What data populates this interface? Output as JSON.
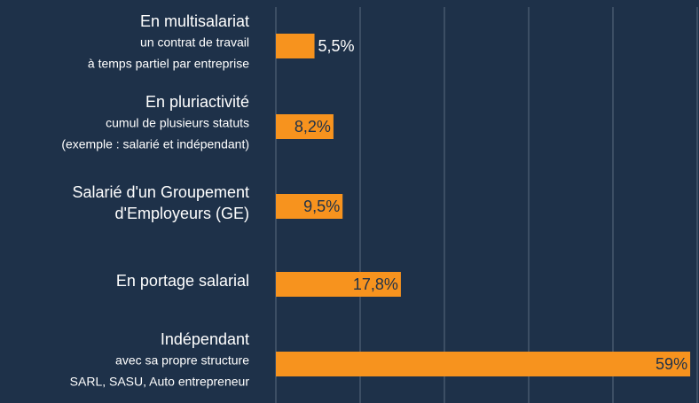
{
  "chart_data": {
    "type": "bar",
    "orientation": "horizontal",
    "categories": [
      [
        "En multisalariat",
        "un contrat de travail",
        "à temps partiel par entreprise"
      ],
      [
        "En pluriactivité",
        "cumul de plusieurs statuts",
        "(exemple :  salarié et indépendant)"
      ],
      [
        "Salarié d'un Groupement",
        "d'Employeurs (GE)"
      ],
      [
        "En portage salarial"
      ],
      [
        "Indépendant",
        "avec sa propre structure",
        "SARL, SASU, Auto entrepreneur"
      ]
    ],
    "values": [
      5.5,
      8.2,
      9.5,
      17.8,
      59
    ],
    "value_labels": [
      "5,5%",
      "8,2%",
      "9,5%",
      "17,8%",
      "59%"
    ],
    "color": "#f7931e",
    "xlim": [
      0,
      60
    ],
    "xticks": [
      0,
      12,
      24,
      36,
      48,
      60
    ],
    "grid": true
  }
}
